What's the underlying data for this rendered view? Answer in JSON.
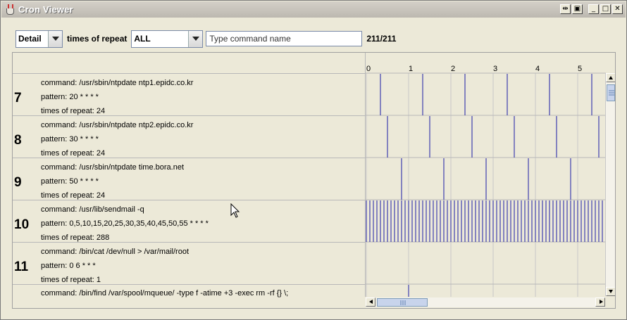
{
  "window": {
    "title": "Cron Viewer"
  },
  "toolbar": {
    "view_mode": "Detail",
    "repeat_label": "times of repeat",
    "repeat_filter": "ALL",
    "search_placeholder": "Type command name",
    "search_value": "",
    "count": "211/211"
  },
  "timeline": {
    "hour_labels": [
      "0",
      "1",
      "2",
      "3",
      "4",
      "5"
    ],
    "line_color": "#1a1aa6",
    "grid_color": "#c8c8c8"
  },
  "jobs": [
    {
      "id": "7",
      "command": "command: /usr/sbin/ntpdate ntp1.epidc.co.kr",
      "pattern": "pattern: 20 * * * *",
      "repeat": "times of repeat: 24",
      "minutes": [
        20
      ]
    },
    {
      "id": "8",
      "command": "command: /usr/sbin/ntpdate ntp2.epidc.co.kr",
      "pattern": "pattern: 30 * * * *",
      "repeat": "times of repeat: 24",
      "minutes": [
        30
      ]
    },
    {
      "id": "9",
      "command": "command: /usr/sbin/ntpdate time.bora.net",
      "pattern": "pattern: 50 * * * *",
      "repeat": "times of repeat: 24",
      "minutes": [
        50
      ]
    },
    {
      "id": "10",
      "command": "command: /usr/lib/sendmail -q",
      "pattern": "pattern: 0,5,10,15,20,25,30,35,40,45,50,55 * * * *",
      "repeat": "times of repeat: 288",
      "minutes": [
        0,
        5,
        10,
        15,
        20,
        25,
        30,
        35,
        40,
        45,
        50,
        55
      ]
    },
    {
      "id": "11",
      "command": "command: /bin/cat /dev/null > /var/mail/root",
      "pattern": "pattern: 0 6 * * *",
      "repeat": "times of repeat: 1",
      "minutes": []
    },
    {
      "id": "",
      "command": "command: /bin/find /var/spool/mqueue/ -type f -atime +3 -exec rm -rf {} \\;",
      "pattern": "",
      "repeat": "",
      "minutes": [
        60
      ]
    }
  ]
}
